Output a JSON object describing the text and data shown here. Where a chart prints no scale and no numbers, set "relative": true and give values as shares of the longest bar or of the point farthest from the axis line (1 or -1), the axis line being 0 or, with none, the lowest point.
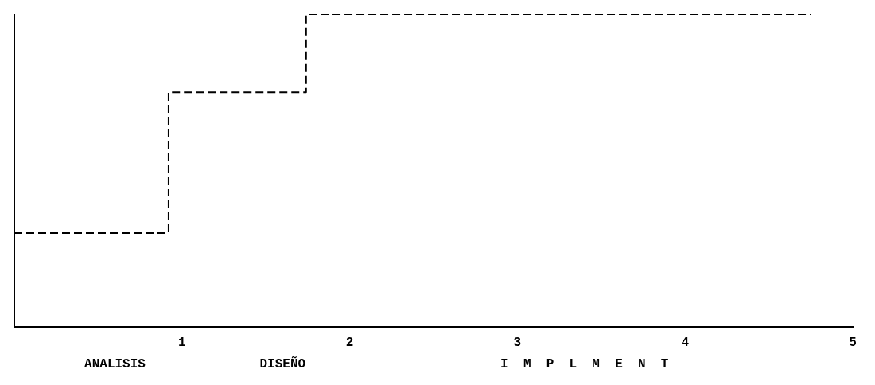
{
  "chart_data": {
    "type": "step",
    "relative": true,
    "x": [
      0,
      0.92,
      1.74,
      4.75
    ],
    "series": [
      {
        "color": "#000000",
        "values": [
          0.3,
          0.75,
          1,
          1
        ]
      }
    ],
    "xlim": [
      0,
      5
    ],
    "xticks": [
      1,
      2,
      3,
      4,
      5
    ],
    "line_style": "dashed",
    "marker": "none",
    "grid": false,
    "legend": false,
    "annotations": [
      "ANALISIS",
      "DISEÑO",
      "I  M  P  L  M  E  N  T"
    ]
  }
}
